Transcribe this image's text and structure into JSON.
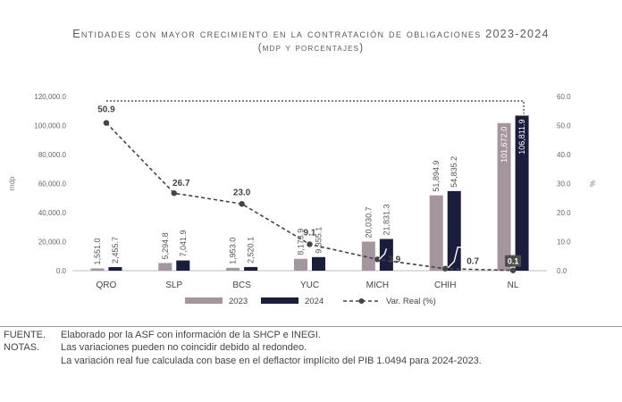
{
  "title": "Entidades con mayor crecimiento en la contratación de obligaciones 2023-2024",
  "subtitle": "(mdp y porcentajes)",
  "footer": {
    "fuente_label": "FUENTE.",
    "fuente_text": "Elaborado por la ASF con información de la SHCP e INEGI.",
    "notas_label": "NOTAS.",
    "notas_line1": "Las variaciones pueden no coincidir debido al redondeo.",
    "notas_line2": "La variación real fue calculada con base en el deflactor implícito del PIB 1.0494 para 2024-2023."
  },
  "colors": {
    "bar2023": "#a5959e",
    "bar2024": "#1b1d3c",
    "line": "#444444"
  },
  "chart_data": {
    "type": "bar",
    "categories": [
      "QRO",
      "SLP",
      "BCS",
      "YUC",
      "MICH",
      "CHIH",
      "NL"
    ],
    "series": [
      {
        "name": "2023",
        "values": [
          1551.0,
          5294.8,
          1953.0,
          8173.9,
          20030.7,
          51894.9,
          101672.0
        ],
        "labels": [
          "1,551.0",
          "5,294.8",
          "1,953.0",
          "8,173.9",
          "20,030.7",
          "51,894.9",
          "101,672.0"
        ]
      },
      {
        "name": "2024",
        "values": [
          2455.7,
          7041.9,
          2520.1,
          9355.1,
          21831.3,
          54835.2,
          106811.9
        ],
        "labels": [
          "2,455.7",
          "7,041.9",
          "2,520.1",
          "9,355.1",
          "21,831.3",
          "54,835.2",
          "106,811.9"
        ]
      }
    ],
    "line": {
      "name": "Var. Real (%)",
      "values": [
        50.9,
        26.7,
        23.0,
        9.1,
        3.9,
        0.7,
        0.1
      ],
      "labels": [
        "50.9",
        "26.7",
        "23.0",
        "9.1",
        "3.9",
        "0.7",
        "0.1"
      ]
    },
    "ylabel": "mdp",
    "y2label": "%",
    "ylim": [
      0,
      120000
    ],
    "y2lim": [
      0,
      60
    ],
    "yticks": [
      "0.0",
      "20,000.0",
      "40,000.0",
      "60,000.0",
      "80,000.0",
      "100,000.0",
      "120,000.0"
    ],
    "y2ticks": [
      "0.0",
      "10.0",
      "20.0",
      "30.0",
      "40.0",
      "50.0",
      "60.0"
    ],
    "legend_position": "bottom"
  }
}
